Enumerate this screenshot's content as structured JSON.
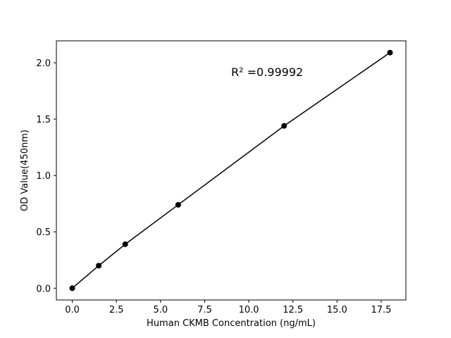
{
  "chart_data": {
    "type": "line",
    "x": [
      0,
      1.5,
      3,
      6,
      12,
      18
    ],
    "series": [
      {
        "values": [
          0,
          0.2,
          0.39,
          0.74,
          1.44,
          2.09
        ],
        "color": "#000000"
      }
    ],
    "xlabel": "Human CKMB Concentration (ng/mL)",
    "ylabel": "OD Value(450nm)",
    "annotation": "R² =0.99992",
    "xlim": [
      -0.9,
      18.9
    ],
    "ylim": [
      -0.1045,
      2.1945
    ],
    "xticks": [
      {
        "value": 0,
        "label": "0.0"
      },
      2.5,
      {
        "value": 5,
        "label": "5.0"
      },
      7.5,
      {
        "value": 10,
        "label": "10.0"
      },
      12.5,
      {
        "value": 15,
        "label": "15.0"
      },
      17.5
    ],
    "yticks": [
      {
        "value": 0,
        "label": "0.0"
      },
      0.5,
      {
        "value": 1,
        "label": "1.0"
      },
      1.5,
      {
        "value": 2,
        "label": "2.0"
      }
    ],
    "grid": false
  }
}
